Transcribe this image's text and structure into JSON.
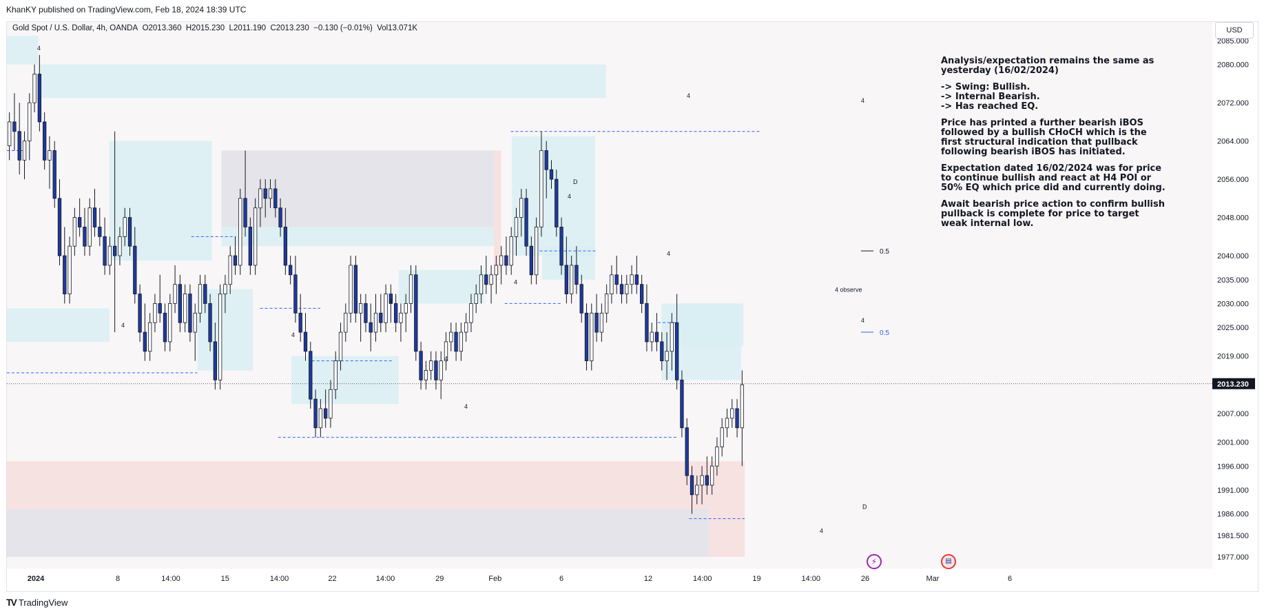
{
  "header": {
    "published": "KhanKY published on TradingView.com, Feb 18, 2024 18:39 UTC"
  },
  "symbol": {
    "name": "Gold Spot / U.S. Dollar, 4h, OANDA",
    "open": "O2013.360",
    "high": "H2015.230",
    "low": "L2011.190",
    "close": "C2013.230",
    "change": "−0.130 (−0.01%)",
    "volume": "Vol13.071K"
  },
  "currency": "USD",
  "annotation": {
    "paragraphs": [
      "Analysis/expectation remains the same as yesterday (16/02/2024)",
      "-> Swing: Bullish.\n-> Internal Bearish.\n-> Has reached EQ.",
      "Price has printed a further bearish iBOS followed by a bullish CHoCH which is the first structural indication that pullback following bearish iBOS has initiated.",
      "Expectation dated 16/02/2024 was for price to continue bullish and react at H4 POI or 50% EQ which price did and currently doing.",
      "Await bearish price action to confirm bullish pullback is complete for price to target weak internal low."
    ]
  },
  "colors": {
    "candle_up": "#ffffff",
    "candle_down": "#1e3a9e",
    "wick": "#131722",
    "zone_teal": "#d9eef2",
    "zone_pink": "#f7dede",
    "zone_grey": "#e1e1e8",
    "dash_blue": "#2962ff",
    "price_label_bg": "#131722",
    "plot_bg": "#f8f6f7"
  },
  "chart_data": {
    "type": "candlestick",
    "title": "Gold Spot / U.S. Dollar, 4h, OANDA",
    "y_axis": {
      "ticks": [
        "2085.000",
        "2080.000",
        "2072.000",
        "2064.000",
        "2056.000",
        "2048.000",
        "2040.000",
        "2035.000",
        "2030.000",
        "2025.000",
        "2019.000",
        "2013.230",
        "2007.000",
        "2001.000",
        "1996.000",
        "1991.000",
        "1986.000",
        "1981.500",
        "1977.000"
      ],
      "ylim": [
        1976,
        2086
      ],
      "last_price": "2013.230"
    },
    "x_axis": {
      "ticks": [
        "2024",
        "8",
        "14:00",
        "15",
        "14:00",
        "22",
        "14:00",
        "29",
        "Feb",
        "6",
        "12",
        "14:00",
        "19",
        "14:00",
        "26",
        "Mar",
        "6"
      ]
    },
    "labels": {
      "fib_05_top": "0.5",
      "fib_05_bottom": "0.5",
      "observe": "4 observe",
      "d_upper": "D",
      "d_lower": "D",
      "four": "4"
    },
    "candles": [
      [
        2063,
        2070,
        2060,
        2068
      ],
      [
        2068,
        2074,
        2062,
        2066
      ],
      [
        2066,
        2072,
        2057,
        2060
      ],
      [
        2060,
        2066,
        2056,
        2064
      ],
      [
        2064,
        2074,
        2060,
        2072
      ],
      [
        2072,
        2080,
        2070,
        2078
      ],
      [
        2078,
        2082,
        2066,
        2068
      ],
      [
        2068,
        2070,
        2058,
        2060
      ],
      [
        2060,
        2065,
        2054,
        2062
      ],
      [
        2062,
        2064,
        2050,
        2052
      ],
      [
        2052,
        2056,
        2038,
        2040
      ],
      [
        2040,
        2046,
        2030,
        2032
      ],
      [
        2032,
        2044,
        2030,
        2042
      ],
      [
        2042,
        2050,
        2040,
        2048
      ],
      [
        2048,
        2052,
        2044,
        2046
      ],
      [
        2046,
        2050,
        2040,
        2042
      ],
      [
        2042,
        2052,
        2040,
        2050
      ],
      [
        2050,
        2054,
        2044,
        2046
      ],
      [
        2046,
        2050,
        2042,
        2044
      ],
      [
        2044,
        2048,
        2036,
        2038
      ],
      [
        2038,
        2044,
        2036,
        2042
      ],
      [
        2042,
        2066,
        2024,
        2040
      ],
      [
        2040,
        2046,
        2038,
        2044
      ],
      [
        2044,
        2050,
        2042,
        2048
      ],
      [
        2048,
        2050,
        2040,
        2042
      ],
      [
        2042,
        2046,
        2030,
        2032
      ],
      [
        2032,
        2034,
        2022,
        2024
      ],
      [
        2024,
        2030,
        2018,
        2020
      ],
      [
        2020,
        2028,
        2018,
        2026
      ],
      [
        2026,
        2032,
        2024,
        2030
      ],
      [
        2030,
        2036,
        2026,
        2028
      ],
      [
        2028,
        2030,
        2020,
        2022
      ],
      [
        2022,
        2032,
        2020,
        2030
      ],
      [
        2030,
        2038,
        2028,
        2034
      ],
      [
        2034,
        2036,
        2024,
        2026
      ],
      [
        2026,
        2034,
        2024,
        2032
      ],
      [
        2032,
        2034,
        2022,
        2024
      ],
      [
        2024,
        2030,
        2018,
        2028
      ],
      [
        2028,
        2036,
        2026,
        2034
      ],
      [
        2034,
        2036,
        2028,
        2030
      ],
      [
        2030,
        2032,
        2020,
        2022
      ],
      [
        2022,
        2026,
        2012,
        2014
      ],
      [
        2014,
        2034,
        2012,
        2032
      ],
      [
        2032,
        2036,
        2028,
        2034
      ],
      [
        2034,
        2042,
        2032,
        2040
      ],
      [
        2040,
        2044,
        2036,
        2038
      ],
      [
        2038,
        2054,
        2036,
        2052
      ],
      [
        2052,
        2062,
        2044,
        2046
      ],
      [
        2046,
        2048,
        2036,
        2038
      ],
      [
        2038,
        2052,
        2036,
        2050
      ],
      [
        2050,
        2056,
        2046,
        2054
      ],
      [
        2054,
        2056,
        2048,
        2052
      ],
      [
        2052,
        2056,
        2050,
        2054
      ],
      [
        2054,
        2056,
        2048,
        2050
      ],
      [
        2050,
        2052,
        2044,
        2046
      ],
      [
        2046,
        2050,
        2036,
        2038
      ],
      [
        2038,
        2040,
        2034,
        2036
      ],
      [
        2036,
        2040,
        2026,
        2028
      ],
      [
        2028,
        2032,
        2022,
        2024
      ],
      [
        2024,
        2028,
        2018,
        2020
      ],
      [
        2020,
        2022,
        2008,
        2010
      ],
      [
        2010,
        2012,
        2002,
        2004
      ],
      [
        2004,
        2010,
        2002,
        2008
      ],
      [
        2008,
        2012,
        2004,
        2006
      ],
      [
        2006,
        2014,
        2004,
        2012
      ],
      [
        2012,
        2020,
        2010,
        2018
      ],
      [
        2018,
        2026,
        2016,
        2024
      ],
      [
        2024,
        2030,
        2022,
        2028
      ],
      [
        2028,
        2040,
        2026,
        2038
      ],
      [
        2038,
        2040,
        2026,
        2028
      ],
      [
        2028,
        2032,
        2022,
        2030
      ],
      [
        2030,
        2032,
        2024,
        2026
      ],
      [
        2026,
        2030,
        2020,
        2024
      ],
      [
        2024,
        2032,
        2022,
        2028
      ],
      [
        2028,
        2032,
        2024,
        2026
      ],
      [
        2026,
        2034,
        2024,
        2032
      ],
      [
        2032,
        2034,
        2026,
        2030
      ],
      [
        2030,
        2032,
        2024,
        2026
      ],
      [
        2026,
        2030,
        2022,
        2028
      ],
      [
        2028,
        2032,
        2024,
        2030
      ],
      [
        2030,
        2038,
        2028,
        2036
      ],
      [
        2036,
        2038,
        2018,
        2020
      ],
      [
        2020,
        2022,
        2012,
        2014
      ],
      [
        2014,
        2018,
        2012,
        2016
      ],
      [
        2016,
        2020,
        2014,
        2018
      ],
      [
        2018,
        2020,
        2012,
        2014
      ],
      [
        2014,
        2020,
        2010,
        2018
      ],
      [
        2018,
        2024,
        2016,
        2022
      ],
      [
        2022,
        2026,
        2020,
        2024
      ],
      [
        2024,
        2026,
        2018,
        2020
      ],
      [
        2020,
        2026,
        2018,
        2024
      ],
      [
        2024,
        2028,
        2022,
        2026
      ],
      [
        2026,
        2032,
        2024,
        2030
      ],
      [
        2030,
        2034,
        2028,
        2032
      ],
      [
        2032,
        2038,
        2030,
        2036
      ],
      [
        2036,
        2040,
        2032,
        2034
      ],
      [
        2034,
        2038,
        2030,
        2036
      ],
      [
        2036,
        2040,
        2032,
        2038
      ],
      [
        2038,
        2042,
        2034,
        2040
      ],
      [
        2040,
        2044,
        2036,
        2038
      ],
      [
        2038,
        2046,
        2036,
        2044
      ],
      [
        2044,
        2050,
        2040,
        2048
      ],
      [
        2048,
        2054,
        2044,
        2052
      ],
      [
        2052,
        2054,
        2040,
        2042
      ],
      [
        2042,
        2044,
        2034,
        2036
      ],
      [
        2036,
        2048,
        2034,
        2046
      ],
      [
        2046,
        2066,
        2044,
        2062
      ],
      [
        2062,
        2064,
        2052,
        2058
      ],
      [
        2058,
        2060,
        2054,
        2056
      ],
      [
        2056,
        2058,
        2044,
        2046
      ],
      [
        2046,
        2048,
        2036,
        2038
      ],
      [
        2038,
        2044,
        2030,
        2032
      ],
      [
        2032,
        2040,
        2030,
        2038
      ],
      [
        2038,
        2042,
        2032,
        2034
      ],
      [
        2034,
        2036,
        2026,
        2028
      ],
      [
        2028,
        2030,
        2016,
        2018
      ],
      [
        2018,
        2030,
        2016,
        2028
      ],
      [
        2028,
        2032,
        2022,
        2024
      ],
      [
        2024,
        2030,
        2022,
        2028
      ],
      [
        2028,
        2034,
        2026,
        2032
      ],
      [
        2032,
        2038,
        2030,
        2036
      ],
      [
        2036,
        2040,
        2032,
        2034
      ],
      [
        2034,
        2036,
        2030,
        2032
      ],
      [
        2032,
        2036,
        2030,
        2034
      ],
      [
        2034,
        2038,
        2032,
        2036
      ],
      [
        2036,
        2040,
        2032,
        2034
      ],
      [
        2034,
        2036,
        2028,
        2030
      ],
      [
        2030,
        2034,
        2020,
        2022
      ],
      [
        2022,
        2026,
        2020,
        2024
      ],
      [
        2024,
        2028,
        2020,
        2022
      ],
      [
        2022,
        2024,
        2016,
        2018
      ],
      [
        2018,
        2024,
        2014,
        2020
      ],
      [
        2020,
        2028,
        2016,
        2026
      ],
      [
        2026,
        2032,
        2012,
        2014
      ],
      [
        2014,
        2016,
        2002,
        2004
      ],
      [
        2004,
        2006,
        1992,
        1994
      ],
      [
        1994,
        1996,
        1986,
        1990
      ],
      [
        1990,
        1994,
        1988,
        1992
      ],
      [
        1992,
        1996,
        1988,
        1994
      ],
      [
        1994,
        1998,
        1990,
        1992
      ],
      [
        1992,
        1998,
        1990,
        1996
      ],
      [
        1996,
        2002,
        1994,
        2000
      ],
      [
        2000,
        2006,
        1998,
        2004
      ],
      [
        2004,
        2008,
        2002,
        2006
      ],
      [
        2006,
        2010,
        2004,
        2008
      ],
      [
        2008,
        2010,
        2002,
        2004
      ],
      [
        2004,
        2016,
        1996,
        2013
      ]
    ]
  }
}
